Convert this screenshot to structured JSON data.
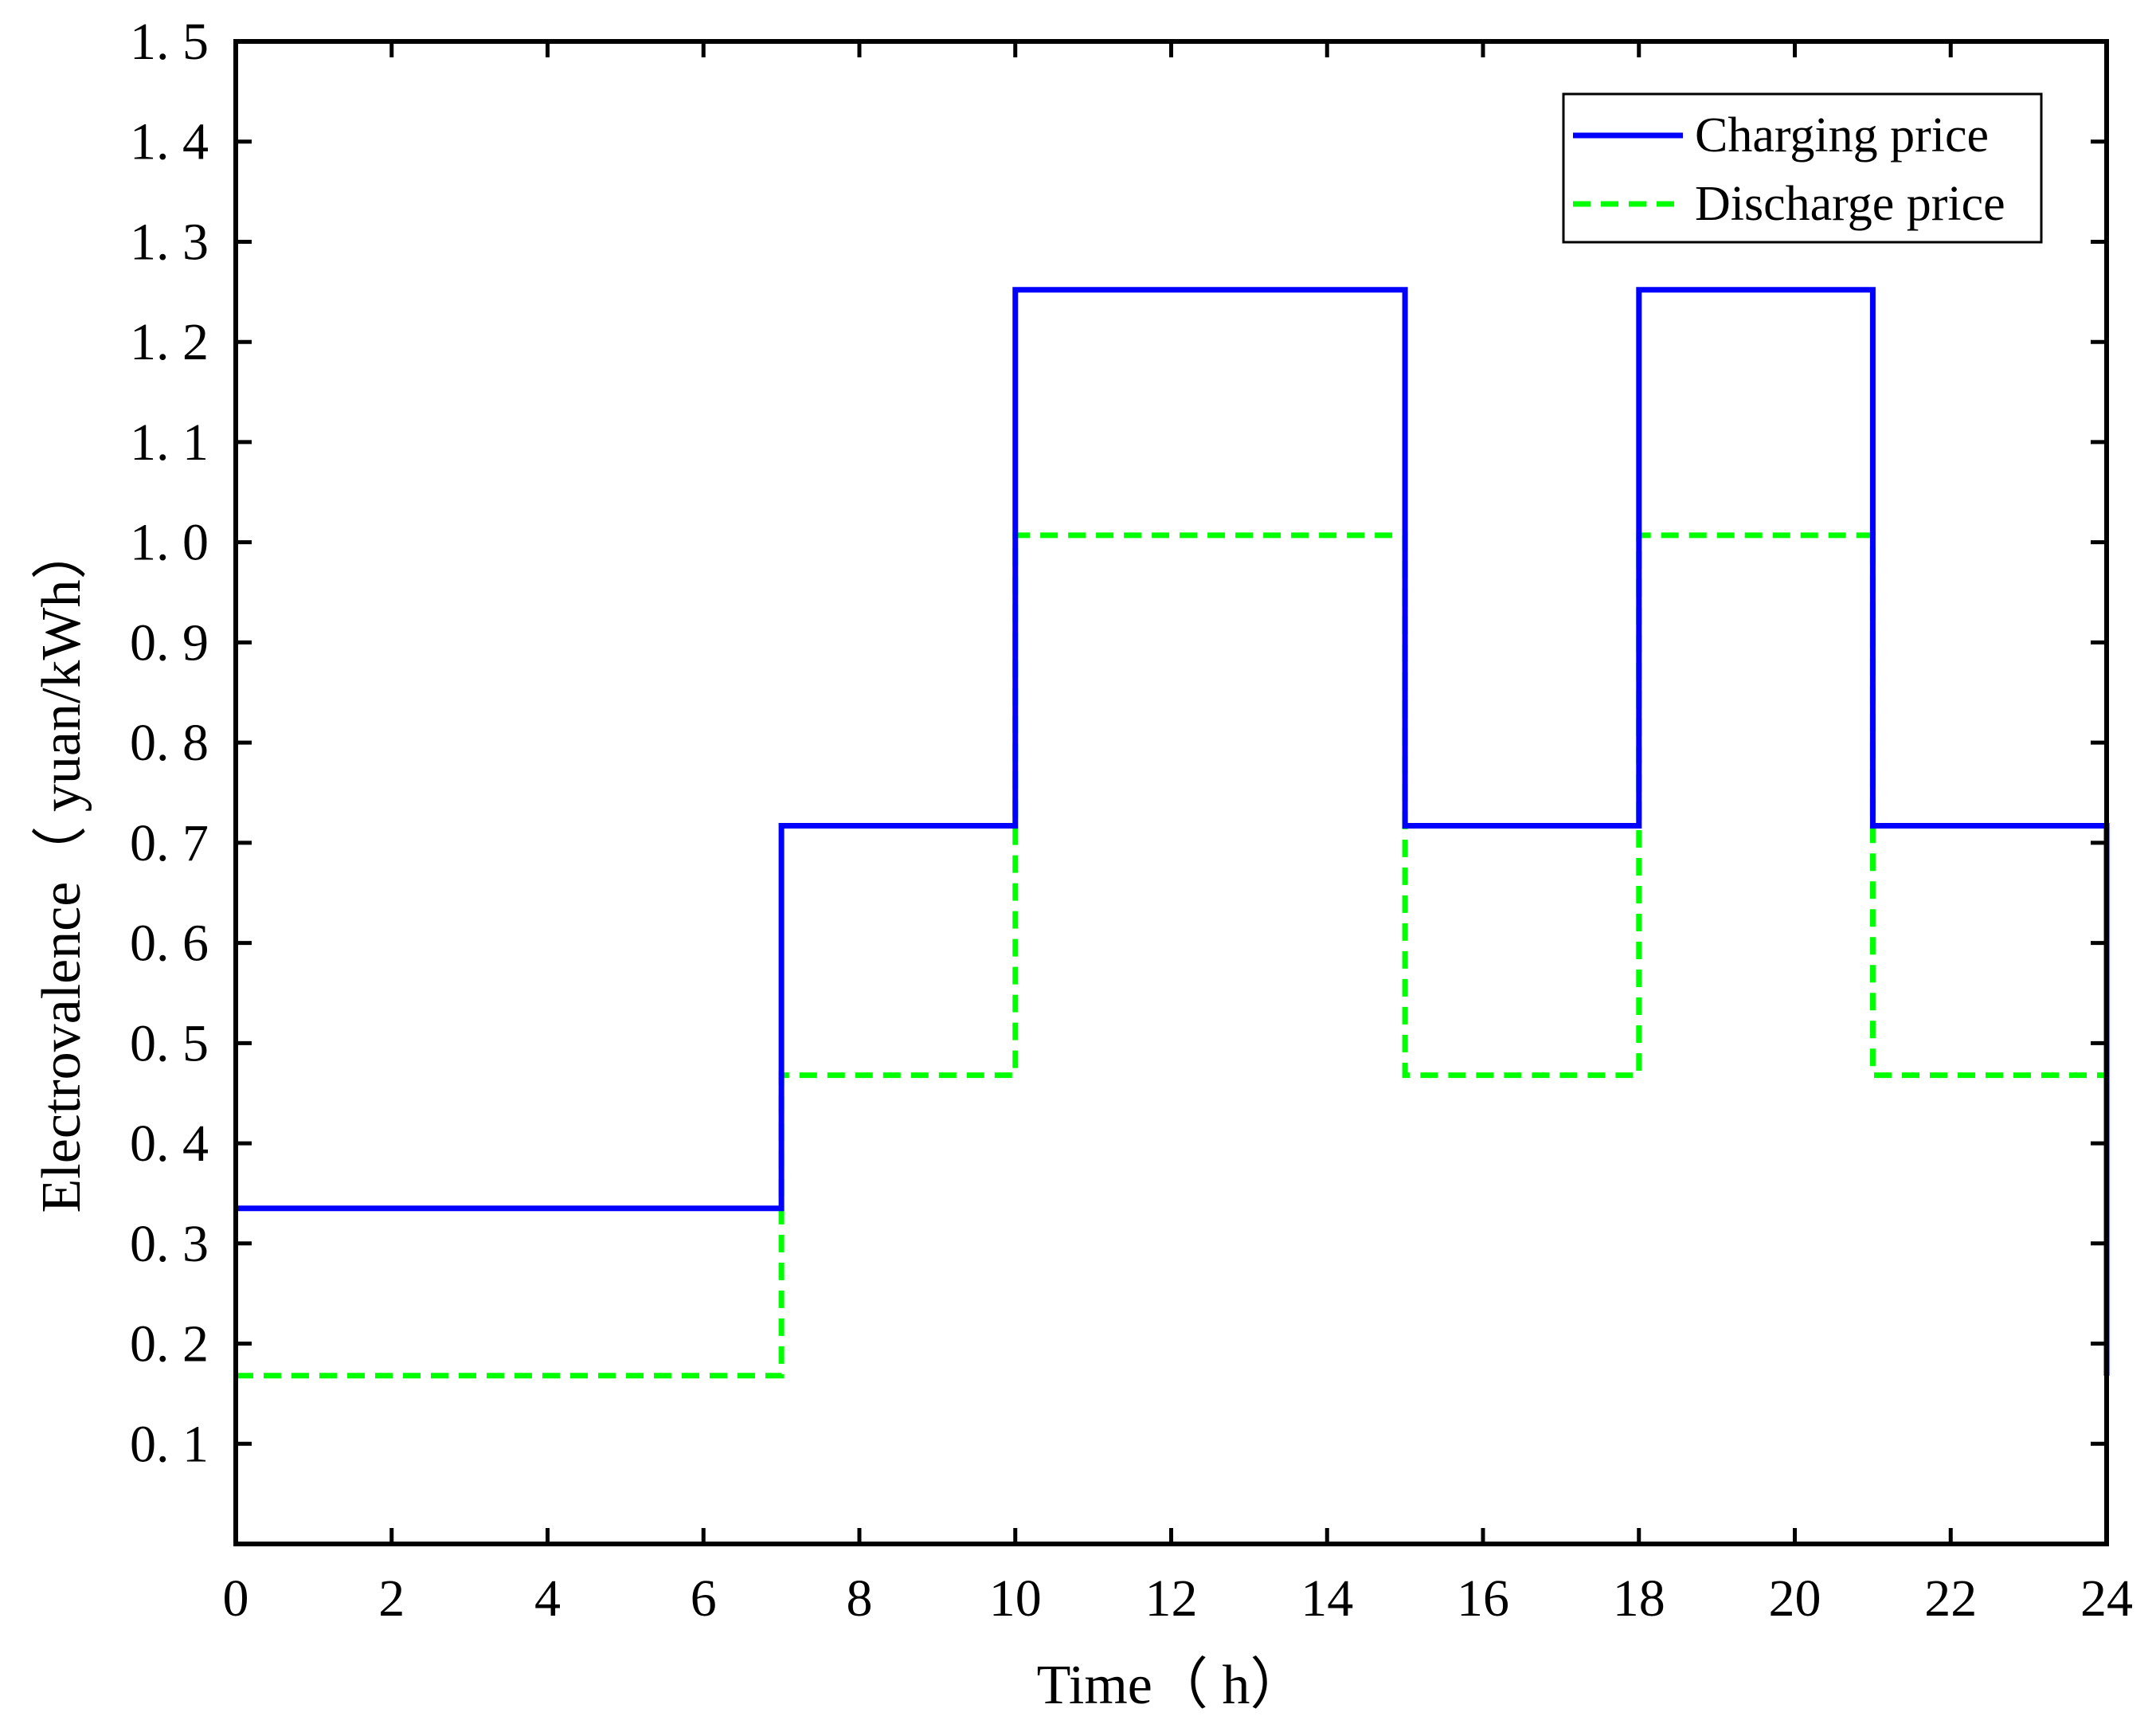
{
  "chart_data": {
    "type": "line",
    "step": true,
    "xlabel": "Time（ h）",
    "ylabel": "Electrovalence（ yuan/kWh）",
    "xlim": [
      0,
      24
    ],
    "ylim": [
      0,
      1.5
    ],
    "xticks": [
      0,
      2,
      4,
      6,
      8,
      10,
      12,
      14,
      16,
      18,
      20,
      22,
      24
    ],
    "yticks": [
      0.1,
      0.2,
      0.3,
      0.4,
      0.5,
      0.6,
      0.7,
      0.8,
      0.9,
      1.0,
      1.1,
      1.2,
      1.3,
      1.4,
      1.5
    ],
    "ytick_labels": [
      "0. 1",
      "0. 2",
      "0. 3",
      "0. 4",
      "0. 5",
      "0. 6",
      "0. 7",
      "0. 8",
      "0. 9",
      "1. 0",
      "1. 1",
      "1. 2",
      "1. 3",
      "1. 4",
      "1. 5"
    ],
    "grid": false,
    "legend_position": "top-right",
    "series": [
      {
        "name": "Charging price",
        "color": "#0000ff",
        "style": "solid",
        "x": [
          0,
          7,
          7,
          10,
          10,
          15,
          15,
          18,
          18,
          21,
          21,
          24,
          24
        ],
        "y": [
          0.335,
          0.335,
          0.717,
          0.717,
          1.252,
          1.252,
          0.717,
          0.717,
          1.252,
          1.252,
          0.717,
          0.717,
          0.168
        ]
      },
      {
        "name": "Discharge price",
        "color": "#00ff00",
        "style": "dashed",
        "x": [
          0,
          7,
          7,
          10,
          10,
          15,
          15,
          18,
          18,
          21,
          21,
          24,
          24
        ],
        "y": [
          0.168,
          0.168,
          0.468,
          0.468,
          1.007,
          1.007,
          0.468,
          0.468,
          1.007,
          1.007,
          0.468,
          0.468,
          0.168
        ]
      }
    ]
  }
}
